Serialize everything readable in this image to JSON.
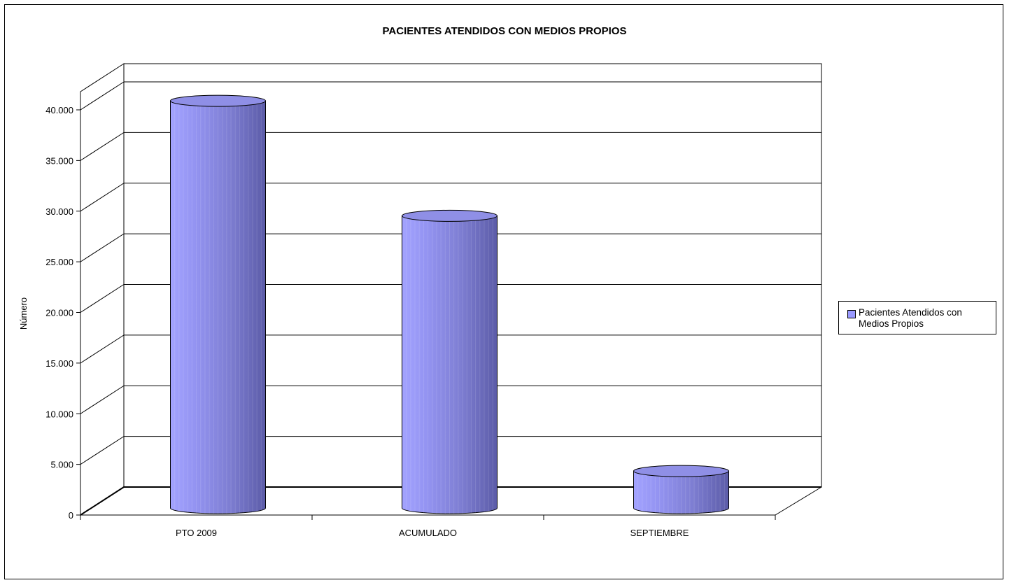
{
  "chart_data": {
    "type": "bar",
    "title": "PACIENTES ATENDIDOS CON MEDIOS PROPIOS",
    "ylabel": "Número",
    "xlabel": "",
    "categories": [
      "PTO 2009",
      "ACUMULADO",
      "SEPTIEMBRE"
    ],
    "series": [
      {
        "name": "Pacientes Atendidos con Medios Propios",
        "values": [
          40200,
          28850,
          3650
        ],
        "color": "#9999ff"
      }
    ],
    "ylim": [
      0,
      40000
    ],
    "yticks": [
      0,
      5000,
      10000,
      15000,
      20000,
      25000,
      30000,
      35000,
      40000
    ],
    "ytick_labels": [
      "0",
      "5.000",
      "10.000",
      "15.000",
      "20.000",
      "25.000",
      "30.000",
      "35.000",
      "40.000"
    ],
    "grid": true,
    "legend_position": "right",
    "bar_shape": "3d-cylinder"
  }
}
